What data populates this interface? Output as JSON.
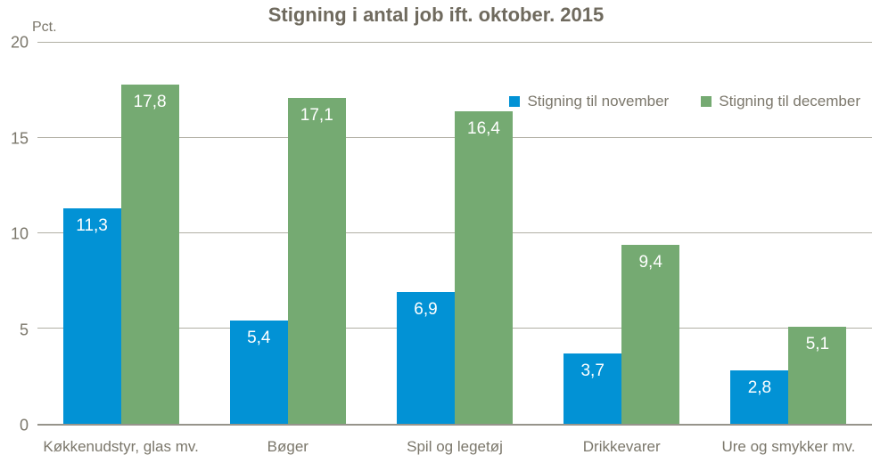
{
  "title": "Stigning i antal job ift. oktober. 2015",
  "y_axis_unit": "Pct.",
  "chart_data": {
    "type": "bar",
    "categories": [
      "Køkkenudstyr, glas mv.",
      "Bøger",
      "Spil og legetøj",
      "Drikkevarer",
      "Ure og smykker mv."
    ],
    "series": [
      {
        "name": "Stigning til november",
        "color": "#0292d5",
        "values": [
          11.3,
          5.4,
          6.9,
          3.7,
          2.8
        ],
        "labels": [
          "11,3",
          "5,4",
          "6,9",
          "3,7",
          "2,8"
        ]
      },
      {
        "name": "Stigning til december",
        "color": "#75aa72",
        "values": [
          17.8,
          17.1,
          16.4,
          9.4,
          5.1
        ],
        "labels": [
          "17,8",
          "17,1",
          "16,4",
          "9,4",
          "5,1"
        ]
      }
    ],
    "title": "Stigning i antal job ift. oktober. 2015",
    "xlabel": "",
    "ylabel": "Pct.",
    "ylim": [
      0,
      20
    ],
    "yticks": [
      0,
      5,
      10,
      15,
      20
    ],
    "grid": true,
    "legend_position": "top-right"
  }
}
